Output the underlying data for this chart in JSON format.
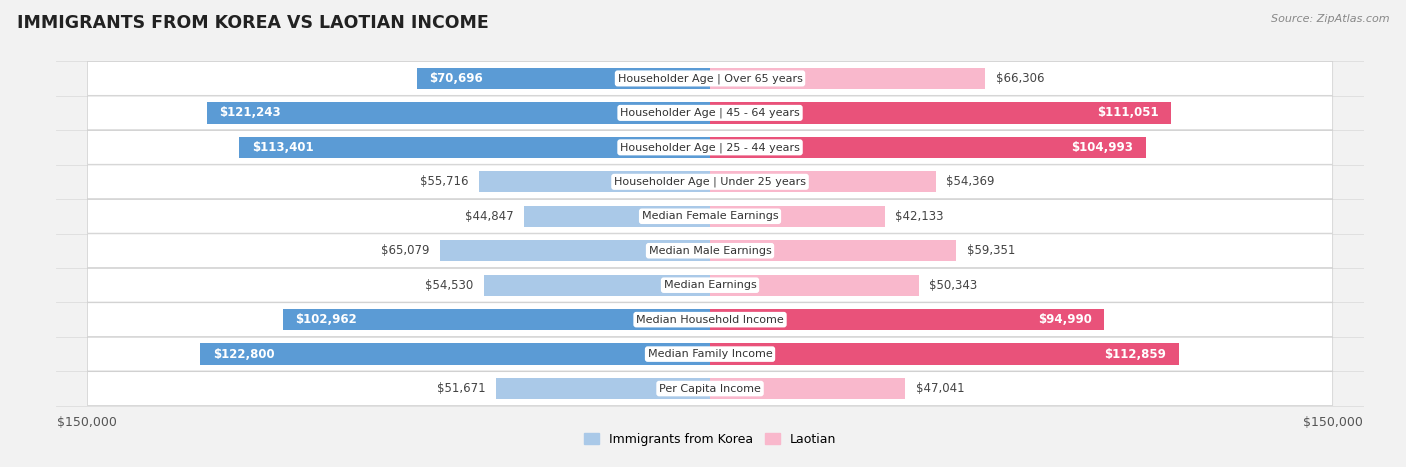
{
  "title": "IMMIGRANTS FROM KOREA VS LAOTIAN INCOME",
  "source": "Source: ZipAtlas.com",
  "categories": [
    "Per Capita Income",
    "Median Family Income",
    "Median Household Income",
    "Median Earnings",
    "Median Male Earnings",
    "Median Female Earnings",
    "Householder Age | Under 25 years",
    "Householder Age | 25 - 44 years",
    "Householder Age | 45 - 64 years",
    "Householder Age | Over 65 years"
  ],
  "korea_values": [
    51671,
    122800,
    102962,
    54530,
    65079,
    44847,
    55716,
    113401,
    121243,
    70696
  ],
  "laotian_values": [
    47041,
    112859,
    94990,
    50343,
    59351,
    42133,
    54369,
    104993,
    111051,
    66306
  ],
  "korea_labels": [
    "$51,671",
    "$122,800",
    "$102,962",
    "$54,530",
    "$65,079",
    "$44,847",
    "$55,716",
    "$113,401",
    "$121,243",
    "$70,696"
  ],
  "laotian_labels": [
    "$47,041",
    "$112,859",
    "$94,990",
    "$50,343",
    "$59,351",
    "$42,133",
    "$54,369",
    "$104,993",
    "$111,051",
    "$66,306"
  ],
  "max_value": 150000,
  "korea_color_light": "#aac9e8",
  "korea_color_dark": "#5b9bd5",
  "laotian_color_light": "#f9b8cc",
  "laotian_color_dark": "#e9527a",
  "bg_color": "#f2f2f2",
  "row_bg_color": "#ffffff",
  "bar_height": 0.62,
  "inside_label_threshold": 70000,
  "label_fontsize": 8.5,
  "cat_fontsize": 8.0
}
